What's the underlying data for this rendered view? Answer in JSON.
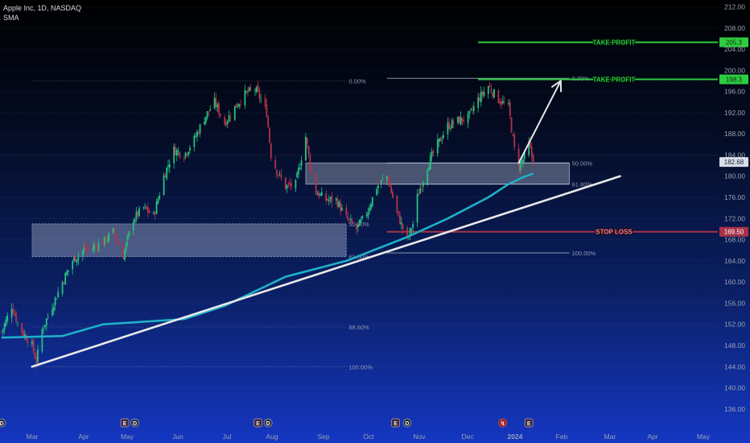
{
  "legend": {
    "symbol_line": "Apple Inc, 1D, NASDAQ",
    "indicator": "SMA"
  },
  "colors": {
    "up": "#26c281",
    "down": "#b5334a",
    "sma": "#1fb0c8",
    "trendline": "#e8e8e8",
    "take_profit": "#2ecc40",
    "stop_loss": "#a8324a",
    "zone_fill": "#c8d2e6",
    "fib_line": "#b8c0d0",
    "fib_label": "#8f98b3"
  },
  "chart_data": {
    "type": "candlestick",
    "x_axis": {
      "labels": [
        "Mar",
        "Apr",
        "May",
        "Jun",
        "Jul",
        "Aug",
        "Sep",
        "Oct",
        "Nov",
        "Dec",
        "2024",
        "Feb",
        "Mar",
        "Apr",
        "May"
      ]
    },
    "y_axis": {
      "min": 136,
      "max": 212,
      "ticks": [
        "212.00",
        "208.00",
        "204.00",
        "200.00",
        "196.00",
        "192.00",
        "188.00",
        "184.00",
        "180.00",
        "176.00",
        "172.00",
        "168.00",
        "164.00",
        "160.00",
        "156.00",
        "152.00",
        "148.00",
        "144.00",
        "140.00",
        "136.00"
      ],
      "tick_values": [
        212,
        208,
        204,
        200,
        196,
        192,
        188,
        184,
        180,
        176,
        172,
        168,
        164,
        160,
        156,
        152,
        148,
        144,
        140,
        136
      ]
    },
    "price_path": [
      {
        "d": 0,
        "p": 150.5
      },
      {
        "d": 7,
        "p": 155.5
      },
      {
        "d": 12,
        "p": 151.5
      },
      {
        "d": 21,
        "p": 148.0
      },
      {
        "d": 24,
        "p": 145.0
      },
      {
        "d": 28,
        "p": 151.0
      },
      {
        "d": 35,
        "p": 155.5
      },
      {
        "d": 42,
        "p": 160.0
      },
      {
        "d": 49,
        "p": 164.0
      },
      {
        "d": 56,
        "p": 166.0
      },
      {
        "d": 63,
        "p": 166.5
      },
      {
        "d": 70,
        "p": 167.5
      },
      {
        "d": 77,
        "p": 169.5
      },
      {
        "d": 84,
        "p": 165.0
      },
      {
        "d": 91,
        "p": 172.0
      },
      {
        "d": 98,
        "p": 174.0
      },
      {
        "d": 105,
        "p": 172.5
      },
      {
        "d": 112,
        "p": 180.0
      },
      {
        "d": 119,
        "p": 185.0
      },
      {
        "d": 126,
        "p": 184.0
      },
      {
        "d": 133,
        "p": 187.0
      },
      {
        "d": 140,
        "p": 191.0
      },
      {
        "d": 147,
        "p": 194.0
      },
      {
        "d": 154,
        "p": 190.0
      },
      {
        "d": 161,
        "p": 193.0
      },
      {
        "d": 168,
        "p": 195.5
      },
      {
        "d": 175,
        "p": 196.5
      },
      {
        "d": 180,
        "p": 194.0
      },
      {
        "d": 183,
        "p": 192.0
      },
      {
        "d": 186,
        "p": 184.0
      },
      {
        "d": 190,
        "p": 181.0
      },
      {
        "d": 196,
        "p": 178.0
      },
      {
        "d": 203,
        "p": 178.5
      },
      {
        "d": 210,
        "p": 187.5
      },
      {
        "d": 213,
        "p": 182.0
      },
      {
        "d": 217,
        "p": 177.0
      },
      {
        "d": 224,
        "p": 175.5
      },
      {
        "d": 231,
        "p": 175.5
      },
      {
        "d": 238,
        "p": 172.0
      },
      {
        "d": 245,
        "p": 170.0
      },
      {
        "d": 252,
        "p": 173.0
      },
      {
        "d": 259,
        "p": 178.0
      },
      {
        "d": 266,
        "p": 180.0
      },
      {
        "d": 273,
        "p": 173.0
      },
      {
        "d": 280,
        "p": 168.0
      },
      {
        "d": 284,
        "p": 171.0
      },
      {
        "d": 287,
        "p": 176.0
      },
      {
        "d": 294,
        "p": 182.0
      },
      {
        "d": 301,
        "p": 186.0
      },
      {
        "d": 308,
        "p": 189.5
      },
      {
        "d": 315,
        "p": 190.5
      },
      {
        "d": 322,
        "p": 191.0
      },
      {
        "d": 329,
        "p": 194.5
      },
      {
        "d": 336,
        "p": 197.0
      },
      {
        "d": 343,
        "p": 194.5
      },
      {
        "d": 350,
        "p": 193.0
      },
      {
        "d": 354,
        "p": 185.0
      },
      {
        "d": 357,
        "p": 182.0
      },
      {
        "d": 362,
        "p": 184.0
      },
      {
        "d": 364,
        "p": 186.0
      },
      {
        "d": 367,
        "p": 182.7
      }
    ],
    "last_price": 182.68,
    "last_price_label": "182.68",
    "sma_line": [
      {
        "d": 0,
        "p": 149.5
      },
      {
        "d": 42,
        "p": 149.8
      },
      {
        "d": 70,
        "p": 152.0
      },
      {
        "d": 98,
        "p": 152.5
      },
      {
        "d": 126,
        "p": 153.0
      },
      {
        "d": 154,
        "p": 155.5
      },
      {
        "d": 196,
        "p": 161.0
      },
      {
        "d": 238,
        "p": 164.0
      },
      {
        "d": 280,
        "p": 168.5
      },
      {
        "d": 308,
        "p": 172.0
      },
      {
        "d": 336,
        "p": 176.0
      },
      {
        "d": 350,
        "p": 178.5
      },
      {
        "d": 360,
        "p": 179.8
      },
      {
        "d": 367,
        "p": 180.5
      }
    ],
    "trendline": {
      "start": {
        "d": 21,
        "p": 144.0
      },
      "end": {
        "d": 427,
        "p": 180.0
      }
    },
    "fib_left": {
      "start_d": 21,
      "end_d": 238,
      "levels": [
        {
          "label": "0.00%",
          "p": 198.0,
          "line": "dotted"
        },
        {
          "label": "50.00%",
          "p": 171.0,
          "line": "dotted"
        },
        {
          "label": "61.80%",
          "p": 164.8,
          "line": "dotted"
        },
        {
          "label": "88.60%",
          "p": 151.5,
          "line": "dotted"
        },
        {
          "label": "100.00%",
          "p": 144.0,
          "line": "dotted"
        }
      ],
      "zone": {
        "top": 171.0,
        "bottom": 164.8
      }
    },
    "fib_right": {
      "start_d": 266,
      "end_d": 392,
      "levels": [
        {
          "label": "0.00%",
          "p": 198.5,
          "line": "solid"
        },
        {
          "label": "50.00%",
          "p": 182.5,
          "line": "solid"
        },
        {
          "label": "61.80%",
          "p": 178.5,
          "line": "solid"
        },
        {
          "label": "100.00%",
          "p": 165.5,
          "line": "solid"
        }
      ],
      "zone": {
        "top": 182.5,
        "bottom": 178.5,
        "start_d": 210
      }
    },
    "take_profits": [
      {
        "label": "TAKE PROFIT",
        "p": 205.3,
        "price_label": "205.3",
        "start_d": 329
      },
      {
        "label": "TAKE PROFIT",
        "p": 198.3,
        "price_label": "198.3",
        "start_d": 329
      }
    ],
    "stop_loss": {
      "label": "STOP LOSS",
      "p": 169.5,
      "price_label": "169.50",
      "start_d": 266
    },
    "projection_arrow": {
      "from": {
        "d": 357,
        "p": 182.5
      },
      "to": {
        "d": 386,
        "p": 198.0
      }
    },
    "event_markers": [
      {
        "d": 0,
        "symbol": "D"
      },
      {
        "d": 85,
        "symbol": "E"
      },
      {
        "d": 92,
        "symbol": "D"
      },
      {
        "d": 177,
        "symbol": "E"
      },
      {
        "d": 184,
        "symbol": "D"
      },
      {
        "d": 272,
        "symbol": "E"
      },
      {
        "d": 280,
        "symbol": "D"
      },
      {
        "d": 346,
        "symbol": "↯"
      },
      {
        "d": 364,
        "symbol": "E"
      }
    ]
  }
}
